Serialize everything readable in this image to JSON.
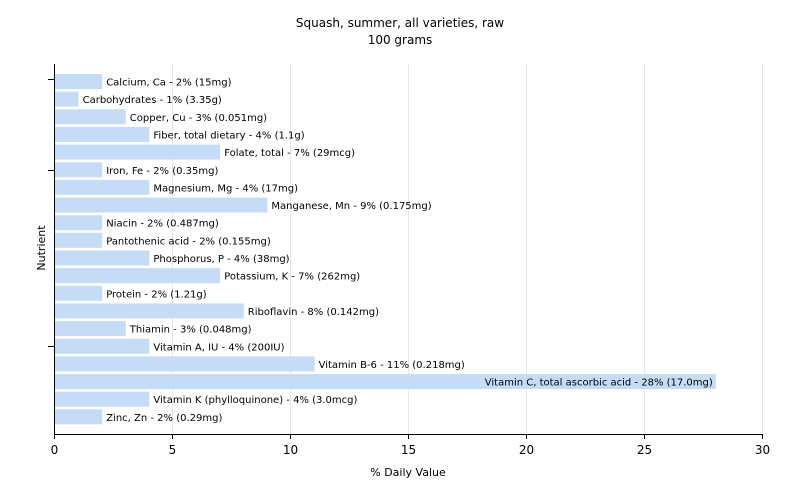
{
  "chart_data": {
    "type": "bar",
    "orientation": "horizontal",
    "title": "Squash, summer, all varieties, raw",
    "subtitle": "100 grams",
    "xlabel": "% Daily Value",
    "ylabel": "Nutrient",
    "xlim": [
      0,
      30
    ],
    "xticks": [
      0,
      5,
      10,
      15,
      20,
      25,
      30
    ],
    "grid": true,
    "categories": [
      "Calcium, Ca",
      "Carbohydrates",
      "Copper, Cu",
      "Fiber, total dietary",
      "Folate, total",
      "Iron, Fe",
      "Magnesium, Mg",
      "Manganese, Mn",
      "Niacin",
      "Pantothenic acid",
      "Phosphorus, P",
      "Potassium, K",
      "Protein",
      "Riboflavin",
      "Thiamin",
      "Vitamin A, IU",
      "Vitamin B-6",
      "Vitamin C, total ascorbic acid",
      "Vitamin K (phylloquinone)",
      "Zinc, Zn"
    ],
    "values": [
      2,
      1,
      3,
      4,
      7,
      2,
      4,
      9,
      2,
      2,
      4,
      7,
      2,
      8,
      3,
      4,
      11,
      28,
      4,
      2
    ],
    "labels": [
      "Calcium, Ca - 2% (15mg)",
      "Carbohydrates - 1% (3.35g)",
      "Copper, Cu - 3% (0.051mg)",
      "Fiber, total dietary - 4% (1.1g)",
      "Folate, total - 7% (29mcg)",
      "Iron, Fe - 2% (0.35mg)",
      "Magnesium, Mg - 4% (17mg)",
      "Manganese, Mn - 9% (0.175mg)",
      "Niacin - 2% (0.487mg)",
      "Pantothenic acid - 2% (0.155mg)",
      "Phosphorus, P - 4% (38mg)",
      "Potassium, K - 7% (262mg)",
      "Protein - 2% (1.21g)",
      "Riboflavin - 8% (0.142mg)",
      "Thiamin - 3% (0.048mg)",
      "Vitamin A, IU - 4% (200IU)",
      "Vitamin B-6 - 11% (0.218mg)",
      "Vitamin C, total ascorbic acid - 28% (17.0mg)",
      "Vitamin K (phylloquinone) - 4% (3.0mcg)",
      "Zinc, Zn - 2% (0.29mg)"
    ],
    "bar_color": "#c5dcf7"
  }
}
